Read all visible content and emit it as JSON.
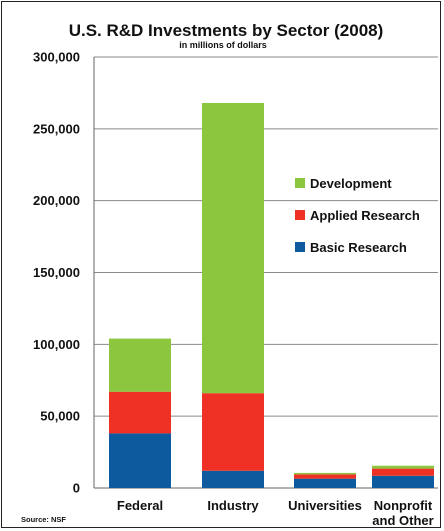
{
  "chart_data": {
    "type": "bar",
    "stacked": true,
    "title": "U.S. R&D Investments by Sector (2008)",
    "subtitle": "in millions of dollars",
    "xlabel": "",
    "ylabel": "",
    "ylim": [
      0,
      300000
    ],
    "yticks": [
      0,
      50000,
      100000,
      150000,
      200000,
      250000,
      300000
    ],
    "ytick_labels": [
      "0",
      "50,000",
      "100,000",
      "150,000",
      "200,000",
      "250,000",
      "300,000"
    ],
    "categories": [
      [
        "Federal"
      ],
      [
        "Industry"
      ],
      [
        "Universities"
      ],
      [
        "Nonprofit",
        "and Other"
      ]
    ],
    "series": [
      {
        "name": "Basic Research",
        "color": "#0d5a9e",
        "values": [
          38000,
          12000,
          6500,
          8500
        ]
      },
      {
        "name": "Applied Research",
        "color": "#ee3124",
        "values": [
          29000,
          54000,
          3000,
          5000
        ]
      },
      {
        "name": "Development",
        "color": "#8cc63f",
        "values": [
          37000,
          202000,
          1000,
          2000
        ]
      }
    ],
    "legend_order": [
      "Development",
      "Applied Research",
      "Basic Research"
    ],
    "legend_position": "right",
    "grid": true,
    "source": "Source: NSF"
  }
}
